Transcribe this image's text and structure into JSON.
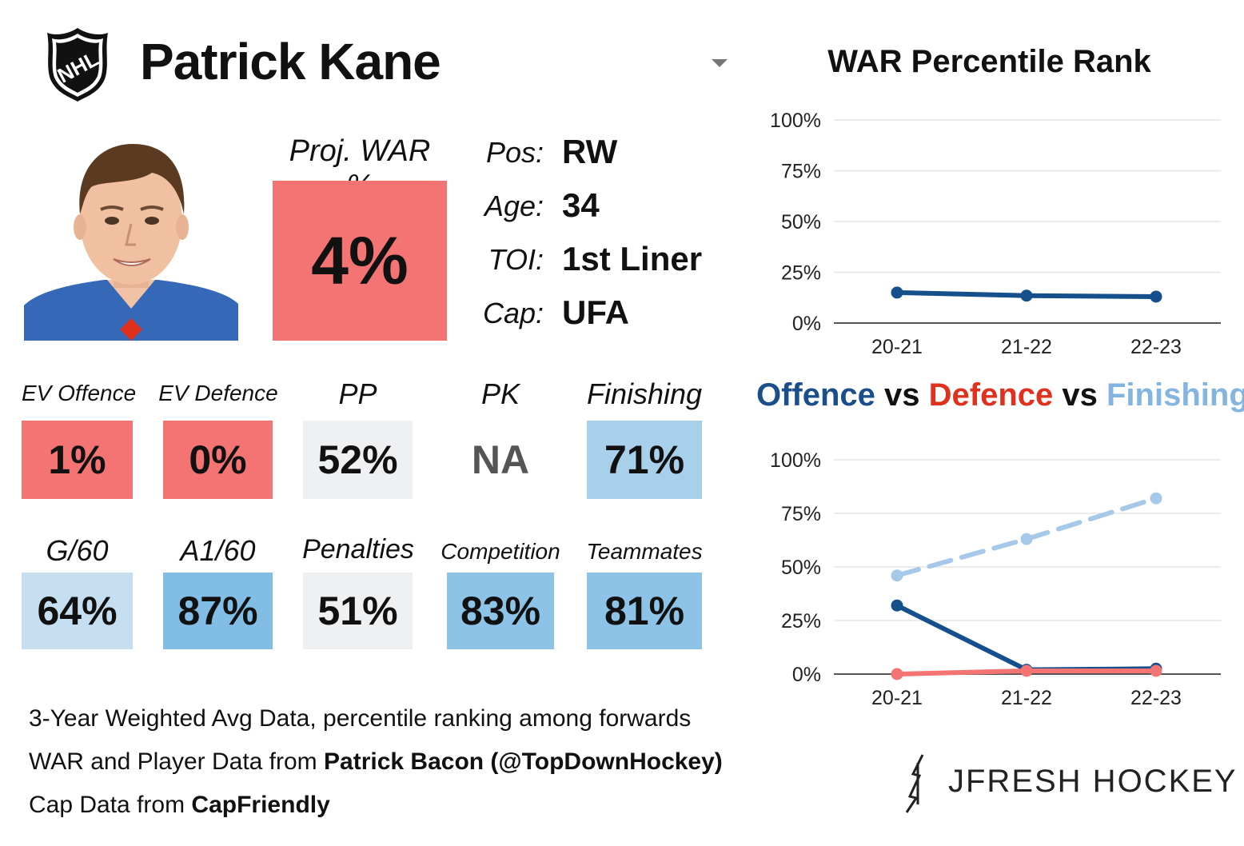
{
  "header": {
    "player_name": "Patrick Kane",
    "logo_text": "NHL"
  },
  "projection": {
    "label": "Proj. WAR %",
    "value": "4%",
    "color": "#f47373"
  },
  "info": [
    {
      "label": "Pos:",
      "value": "RW"
    },
    {
      "label": "Age:",
      "value": "34"
    },
    {
      "label": "TOI:",
      "value": "1st Liner"
    },
    {
      "label": "Cap:",
      "value": "UFA"
    }
  ],
  "stats_row1": [
    {
      "label": "EV Offence",
      "value": "1%",
      "color": "#f47373"
    },
    {
      "label": "EV Defence",
      "value": "0%",
      "color": "#f47373"
    },
    {
      "label": "PP",
      "value": "52%",
      "color": "#eef0f2"
    },
    {
      "label": "PK",
      "value": "NA",
      "color": "#ffffff"
    },
    {
      "label": "Finishing",
      "value": "71%",
      "color": "#a9d0ea"
    }
  ],
  "stats_row2": [
    {
      "label": "G/60",
      "value": "64%",
      "color": "#c6dff0"
    },
    {
      "label": "A1/60",
      "value": "87%",
      "color": "#82bde6"
    },
    {
      "label": "Penalties",
      "value": "51%",
      "color": "#eef0f2"
    },
    {
      "label": "Competition",
      "value": "83%",
      "color": "#8ec3e8"
    },
    {
      "label": "Teammates",
      "value": "81%",
      "color": "#8ec3e8"
    }
  ],
  "notes": {
    "line1": "3-Year Weighted Avg Data, percentile ranking among forwards",
    "line2_prefix": "WAR and Player Data from ",
    "line2_bold": "Patrick Bacon (@TopDownHockey)",
    "line3_prefix": "Cap Data from ",
    "line3_bold": "CapFriendly"
  },
  "brand": {
    "text": "JFRESH HOCKEY"
  },
  "chart_titles": {
    "war": "WAR Percentile Rank",
    "ovd_offence": "Offence",
    "ovd_vs1": " vs ",
    "ovd_defence": "Defence",
    "ovd_vs2": " vs ",
    "ovd_finishing": "Finishing",
    "offence_color": "#1a4f8b",
    "defence_color": "#e0301e",
    "finishing_color": "#84b4e0"
  },
  "chart_data": [
    {
      "type": "line",
      "title": "WAR Percentile Rank",
      "categories": [
        "20-21",
        "21-22",
        "22-23"
      ],
      "yticks": [
        "0%",
        "25%",
        "50%",
        "75%",
        "100%"
      ],
      "ylim": [
        0,
        100
      ],
      "grid": true,
      "series": [
        {
          "values": [
            15,
            13.5,
            13
          ],
          "color": "#154f8c",
          "dashed": false
        }
      ]
    },
    {
      "type": "line",
      "title": "Offence vs Defence vs Finishing",
      "categories": [
        "20-21",
        "21-22",
        "22-23"
      ],
      "yticks": [
        "0%",
        "25%",
        "50%",
        "75%",
        "100%"
      ],
      "ylim": [
        0,
        100
      ],
      "grid": true,
      "series": [
        {
          "values": [
            46,
            63,
            82
          ],
          "color": "#a6c9ea",
          "dashed": true
        },
        {
          "values": [
            32,
            2,
            2.5
          ],
          "color": "#154f8c",
          "dashed": false
        },
        {
          "values": [
            0,
            1.5,
            1.5
          ],
          "color": "#f47373",
          "dashed": false
        }
      ]
    }
  ]
}
